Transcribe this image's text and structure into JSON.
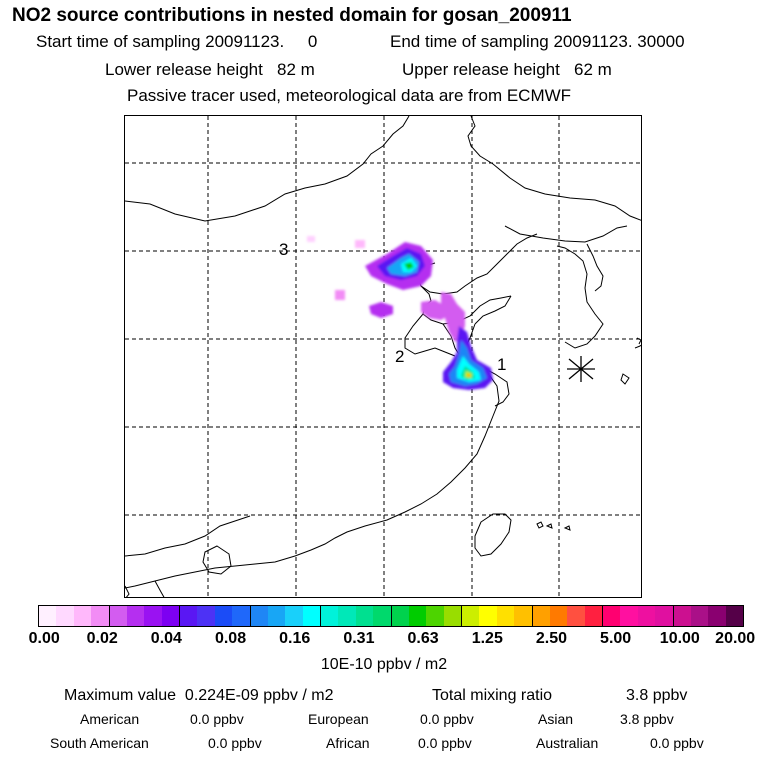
{
  "title": "NO2 source contributions in nested domain for gosan_200911",
  "sampling": {
    "start": "Start time of sampling 20091123.     0",
    "end": "End time of sampling 20091123. 30000"
  },
  "release": {
    "lower": "Lower release height   82 m",
    "upper": "Upper release height   62 m"
  },
  "note": "Passive tracer used, meteorological data are from ECMWF",
  "map": {
    "labels": {
      "one": "1",
      "two": "2",
      "three": "3"
    }
  },
  "colorbar": {
    "colors": [
      "#fff0ff",
      "#ffd9ff",
      "#ffb8fb",
      "#f28cf5",
      "#d35cf0",
      "#b52ff0",
      "#9a12f2",
      "#7d00f2",
      "#5a17f3",
      "#4d32f5",
      "#1b4cf7",
      "#1f68fa",
      "#1f86f5",
      "#18a6f5",
      "#19d0fa",
      "#00ffff",
      "#00f2da",
      "#00e8b8",
      "#00e090",
      "#00d96c",
      "#00d24d",
      "#00cc00",
      "#4dd400",
      "#99dd00",
      "#ccee00",
      "#ffff00",
      "#ffe000",
      "#ffc000",
      "#ffa000",
      "#ff7a00",
      "#ff5040",
      "#ff2040",
      "#ff0070",
      "#ff10a0",
      "#ee10a0",
      "#e010a0",
      "#cc1090",
      "#aa1088",
      "#8a0070",
      "#550048"
    ],
    "ticks": [
      "0.00",
      "0.02",
      "0.04",
      "0.08",
      "0.16",
      "0.31",
      "0.63",
      "1.25",
      "2.50",
      "5.00",
      "10.00",
      "20.00"
    ],
    "unit": "10E-10 ppbv / m2"
  },
  "stats": {
    "max_label": "Maximum value  0.224E-09 ppbv / m2",
    "total_label": "Total mixing ratio",
    "total_value": "3.8 ppbv",
    "regions": [
      {
        "name": "American",
        "value": "0.0 ppbv"
      },
      {
        "name": "European",
        "value": "0.0 ppbv"
      },
      {
        "name": "Asian",
        "value": "3.8 ppbv"
      },
      {
        "name": "South American",
        "value": "0.0 ppbv"
      },
      {
        "name": "African",
        "value": "0.0 ppbv"
      },
      {
        "name": "Australian",
        "value": "0.0 ppbv"
      }
    ]
  }
}
